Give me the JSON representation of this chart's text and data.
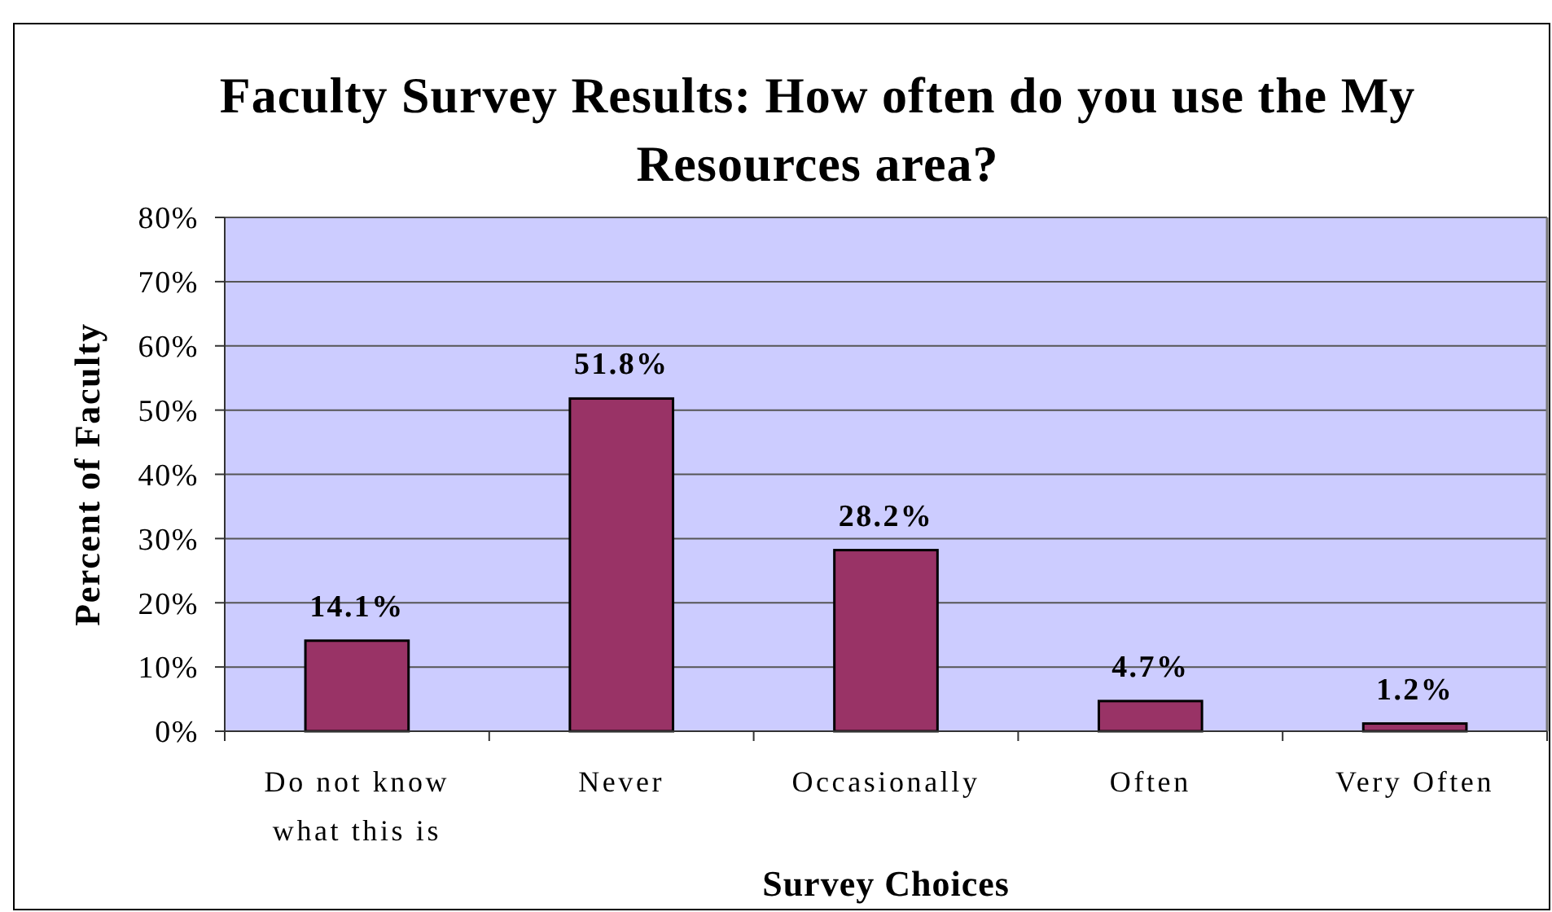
{
  "chart_data": {
    "type": "bar",
    "title": "Faculty Survey Results: How often do you use the My Resources area?",
    "xlabel": "Survey Choices",
    "ylabel": "Percent of Faculty",
    "categories": [
      "Do not know what this is",
      "Never",
      "Occasionally",
      "Often",
      "Very Often"
    ],
    "values": [
      14.1,
      51.8,
      28.2,
      4.7,
      1.2
    ],
    "color": "#993366",
    "value_labels": [
      "14.1%",
      "51.8%",
      "28.2%",
      "4.7%",
      "1.2%"
    ],
    "ylim": [
      0,
      80
    ],
    "yticks": [
      {
        "value": 0,
        "label": "0%"
      },
      {
        "value": 10,
        "label": "10%"
      },
      {
        "value": 20,
        "label": "20%"
      },
      {
        "value": 30,
        "label": "30%"
      },
      {
        "value": 40,
        "label": "40%"
      },
      {
        "value": 50,
        "label": "50%"
      },
      {
        "value": 60,
        "label": "60%"
      },
      {
        "value": 70,
        "label": "70%"
      },
      {
        "value": 80,
        "label": "80%"
      }
    ],
    "grid": "y"
  }
}
